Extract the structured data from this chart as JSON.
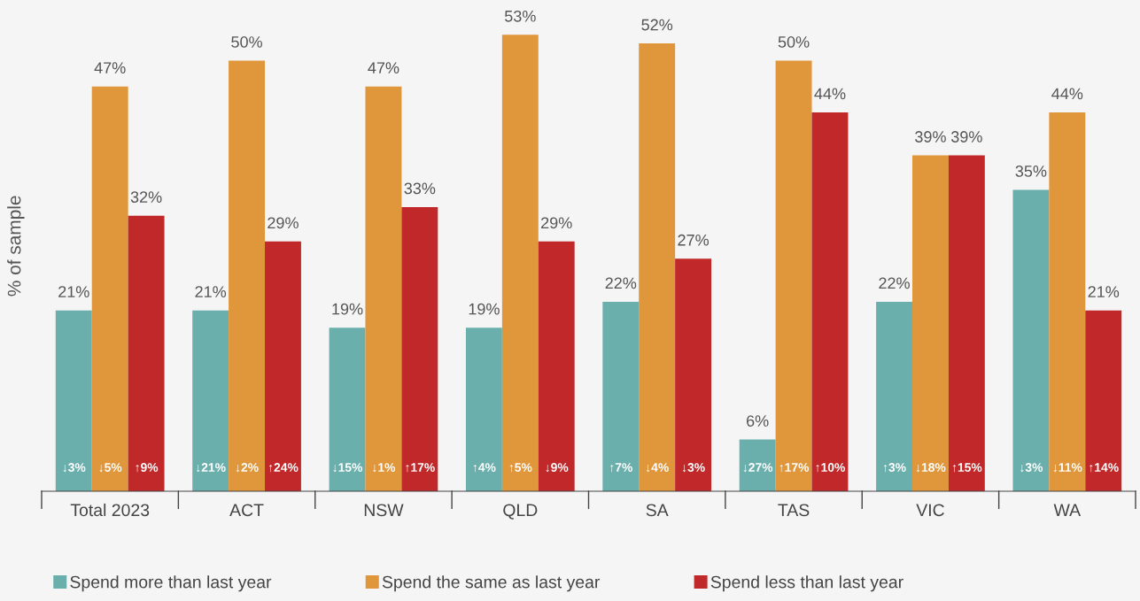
{
  "chart_data": {
    "type": "bar",
    "ylabel": "% of sample",
    "categories": [
      "Total 2023",
      "ACT",
      "NSW",
      "QLD",
      "SA",
      "TAS",
      "VIC",
      "WA"
    ],
    "series": [
      {
        "name": "Spend more than last year",
        "color": "#6aafac",
        "values": [
          21,
          21,
          19,
          19,
          22,
          6,
          22,
          35
        ],
        "value_labels": [
          "21%",
          "21%",
          "19%",
          "19%",
          "22%",
          "6%",
          "22%",
          "35%"
        ]
      },
      {
        "name": "Spend the same as last year",
        "color": "#e0963a",
        "values": [
          47,
          50,
          47,
          53,
          52,
          50,
          39,
          44
        ],
        "value_labels": [
          "47%",
          "50%",
          "47%",
          "53%",
          "52%",
          "50%",
          "39%",
          "44%"
        ]
      },
      {
        "name": "Spend less than last year",
        "color": "#c0282a",
        "values": [
          32,
          29,
          33,
          29,
          27,
          44,
          39,
          21
        ],
        "value_labels": [
          "32%",
          "29%",
          "33%",
          "29%",
          "27%",
          "44%",
          "39%",
          "21%"
        ]
      }
    ],
    "legend": "bottom",
    "annotations": [
      "↓3%",
      "↓5%",
      "↑9%",
      "↓21%",
      "↓2%",
      "↑24%",
      "↓15%",
      "↓1%",
      "↑17%",
      "↑4%",
      "↑5%",
      "↓9%",
      "↑7%",
      "↓4%",
      "↓3%",
      "↓27%",
      "↑17%",
      "↑10%",
      "↑3%",
      "↓18%",
      "↑15%",
      "↓3%",
      "↓11%",
      "↑14%"
    ]
  }
}
